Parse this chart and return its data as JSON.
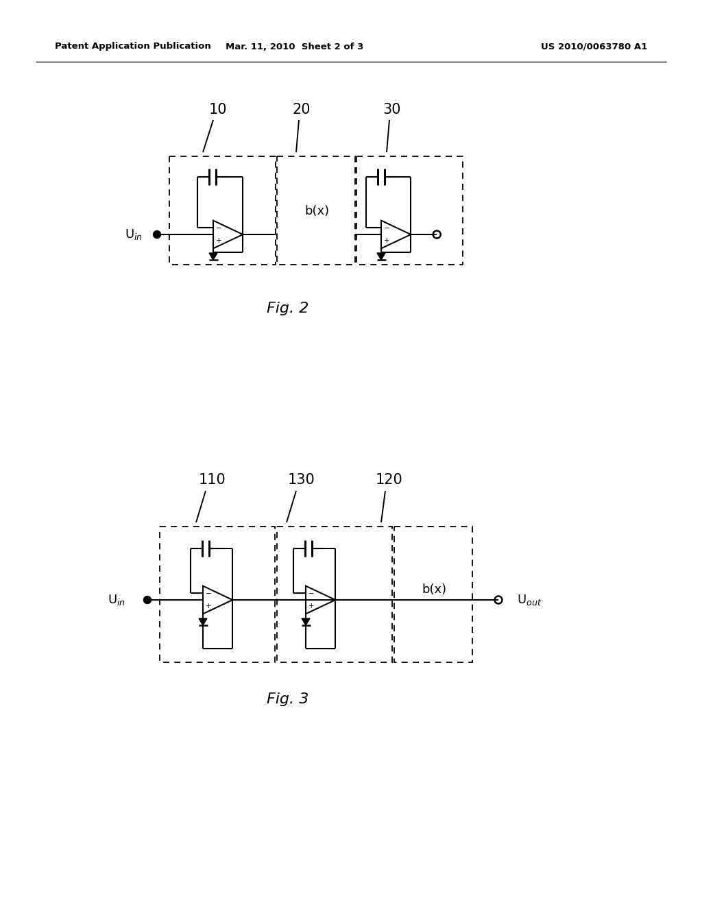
{
  "bg_color": "#ffffff",
  "header_left": "Patent Application Publication",
  "header_center": "Mar. 11, 2010  Sheet 2 of 3",
  "header_right": "US 2010/0063780 A1",
  "fig2_caption": "Fig. 2",
  "fig3_caption": "Fig. 3"
}
